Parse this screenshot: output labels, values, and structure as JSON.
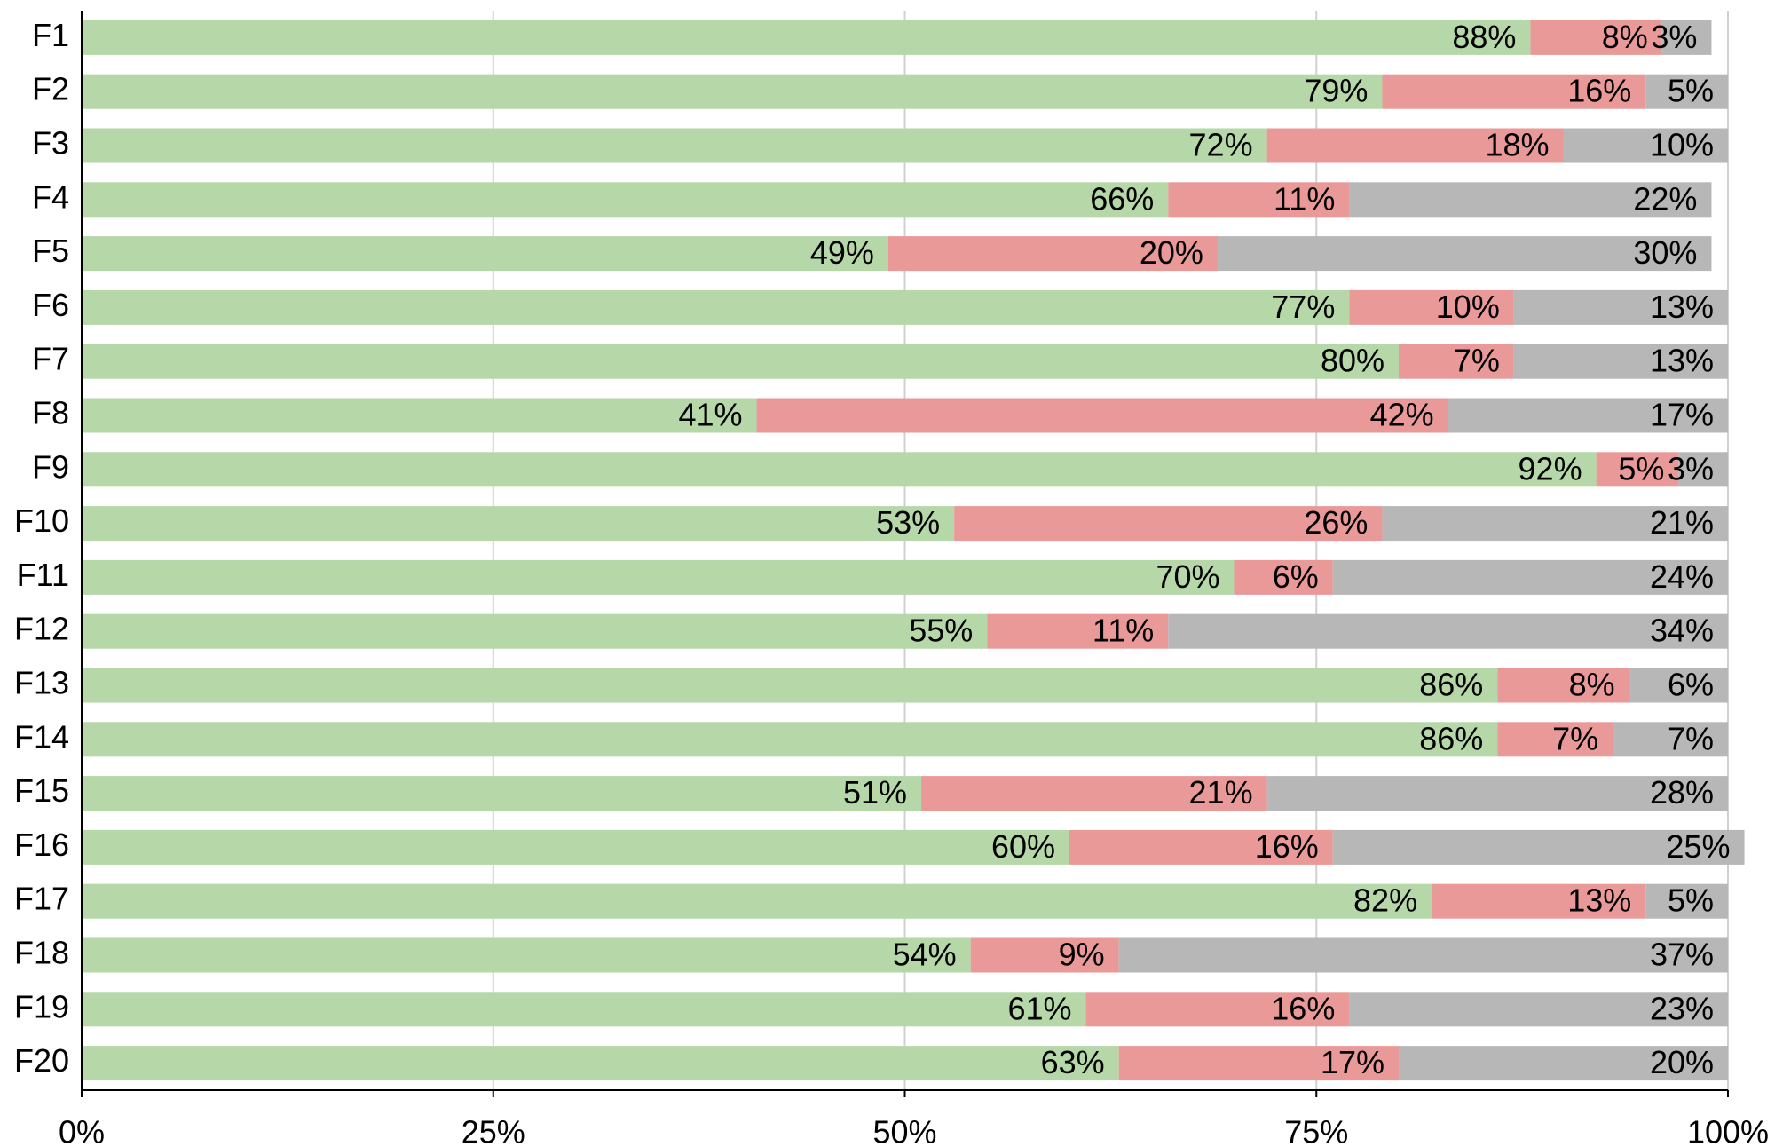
{
  "chart_data": {
    "type": "stacked_bar_horizontal",
    "categories": [
      "F1",
      "F2",
      "F3",
      "F4",
      "F5",
      "F6",
      "F7",
      "F8",
      "F9",
      "F10",
      "F11",
      "F12",
      "F13",
      "F14",
      "F15",
      "F16",
      "F17",
      "F18",
      "F19",
      "F20"
    ],
    "series": [
      {
        "color": "#b6d7a8",
        "values": [
          88,
          79,
          72,
          66,
          49,
          77,
          80,
          41,
          92,
          53,
          70,
          55,
          86,
          86,
          51,
          60,
          82,
          54,
          61,
          63
        ],
        "value_labels": [
          "88%",
          "79%",
          "72%",
          "66%",
          "49%",
          "77%",
          "80%",
          "41%",
          "92%",
          "53%",
          "70%",
          "55%",
          "86%",
          "86%",
          "51%",
          "60%",
          "82%",
          "54%",
          "61%",
          "63%"
        ]
      },
      {
        "color": "#ea9999",
        "values": [
          8,
          16,
          18,
          11,
          20,
          10,
          7,
          42,
          5,
          26,
          6,
          11,
          8,
          7,
          21,
          16,
          13,
          9,
          16,
          17
        ],
        "value_labels": [
          "8%",
          "16%",
          "18%",
          "11%",
          "20%",
          "10%",
          "7%",
          "42%",
          "5%",
          "26%",
          "6%",
          "11%",
          "8%",
          "7%",
          "21%",
          "16%",
          "13%",
          "9%",
          "16%",
          "17%"
        ]
      },
      {
        "color": "#b7b7b7",
        "values": [
          3,
          5,
          10,
          22,
          30,
          13,
          13,
          17,
          3,
          21,
          24,
          34,
          6,
          7,
          28,
          25,
          5,
          37,
          23,
          20
        ],
        "value_labels": [
          "3%",
          "5%",
          "10%",
          "22%",
          "30%",
          "13%",
          "13%",
          "17%",
          "3%",
          "21%",
          "24%",
          "34%",
          "6%",
          "7%",
          "28%",
          "25%",
          "5%",
          "37%",
          "23%",
          "20%"
        ]
      }
    ],
    "xlim": [
      0,
      100
    ],
    "xticks": [
      {
        "value": 0,
        "label": "0%"
      },
      {
        "value": 25,
        "label": "25%"
      },
      {
        "value": 50,
        "label": "50%"
      },
      {
        "value": 75,
        "label": "75%"
      },
      {
        "value": 100,
        "label": "100%"
      }
    ],
    "grid": true
  }
}
